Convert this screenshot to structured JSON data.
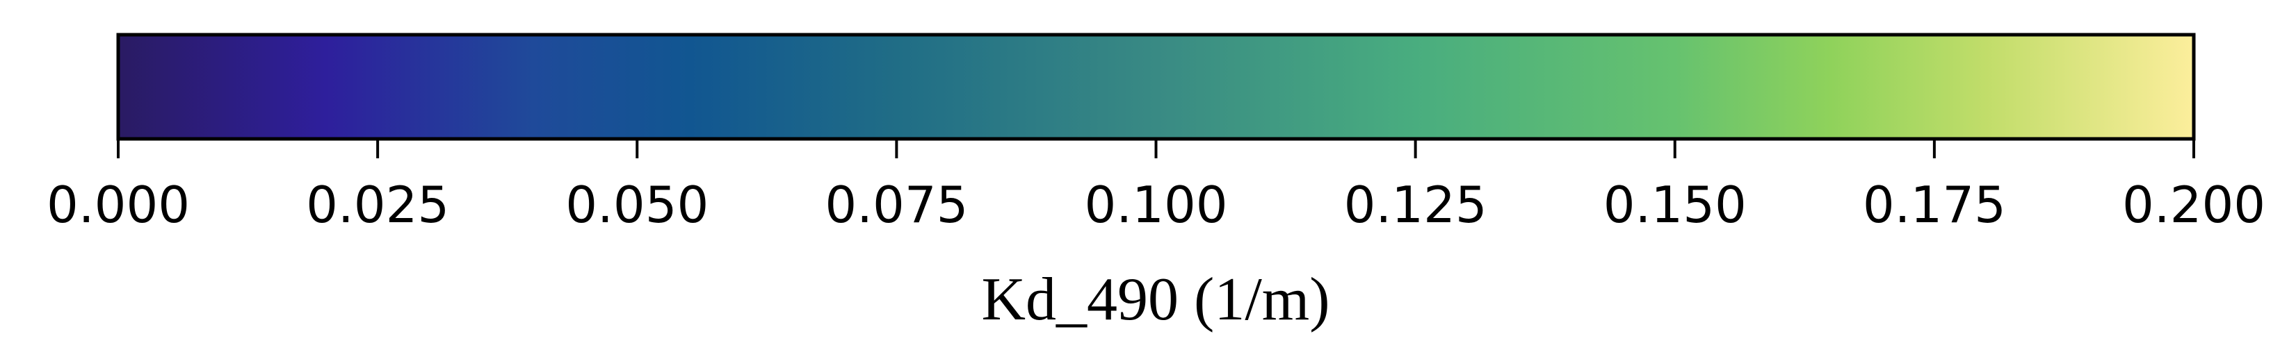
{
  "chart_data": {
    "type": "colorbar",
    "orientation": "horizontal",
    "xlabel": "Kd_490 (1/m)",
    "xlim": [
      0.0,
      0.2
    ],
    "ticks": [
      0.0,
      0.025,
      0.05,
      0.075,
      0.1,
      0.125,
      0.15,
      0.175,
      0.2
    ],
    "tick_labels": [
      "0.000",
      "0.025",
      "0.050",
      "0.075",
      "0.100",
      "0.125",
      "0.150",
      "0.175",
      "0.200"
    ],
    "colormap": "haline",
    "color_stops": [
      {
        "value": 0.0,
        "color": "#2a1b63"
      },
      {
        "value": 0.02,
        "color": "#2e1f9c"
      },
      {
        "value": 0.04,
        "color": "#1f4a9a"
      },
      {
        "value": 0.055,
        "color": "#115691"
      },
      {
        "value": 0.075,
        "color": "#206d86"
      },
      {
        "value": 0.1,
        "color": "#398a84"
      },
      {
        "value": 0.125,
        "color": "#49ad7f"
      },
      {
        "value": 0.15,
        "color": "#66c26f"
      },
      {
        "value": 0.165,
        "color": "#8fd25b"
      },
      {
        "value": 0.18,
        "color": "#c1dd6a"
      },
      {
        "value": 0.2,
        "color": "#fcee9c"
      }
    ]
  }
}
